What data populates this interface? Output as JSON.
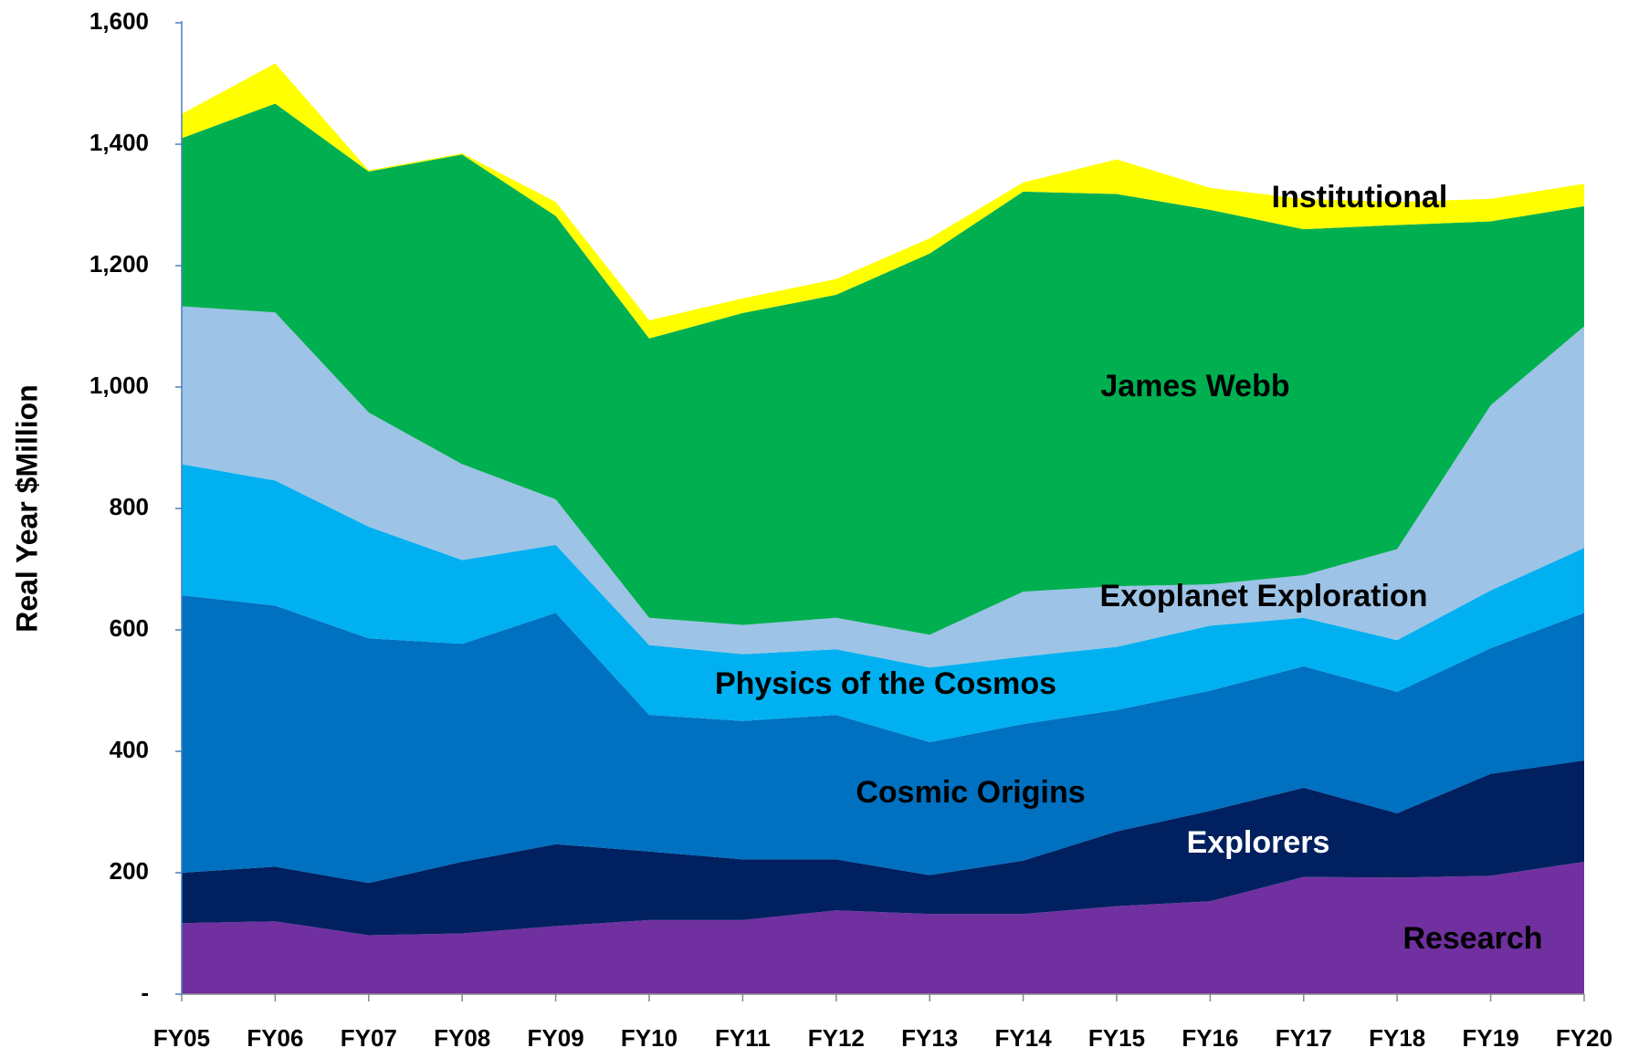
{
  "chart_data": {
    "type": "stacked_area",
    "y_label": "Real Year $Million",
    "categories": [
      "FY05",
      "FY06",
      "FY07",
      "FY08",
      "FY09",
      "FY10",
      "FY11",
      "FY12",
      "FY13",
      "FY14",
      "FY15",
      "FY16",
      "FY17",
      "FY18",
      "FY19",
      "FY20"
    ],
    "series": [
      {
        "name": "Research",
        "color": "#7030a0",
        "values": [
          117,
          120,
          97,
          100,
          112,
          122,
          122,
          138,
          132,
          132,
          145,
          153,
          193,
          192,
          195,
          218
        ]
      },
      {
        "name": "Explorers",
        "color": "#002060",
        "values": [
          83,
          90,
          86,
          118,
          135,
          113,
          100,
          84,
          64,
          88,
          123,
          149,
          147,
          106,
          168,
          167
        ]
      },
      {
        "name": "Cosmic Origins",
        "color": "#0070c0",
        "values": [
          457,
          430,
          403,
          359,
          381,
          225,
          228,
          238,
          219,
          225,
          200,
          198,
          200,
          200,
          207,
          243
        ]
      },
      {
        "name": "Physics of the Cosmos",
        "color": "#00b0f0",
        "values": [
          216,
          206,
          184,
          138,
          112,
          115,
          110,
          108,
          123,
          111,
          104,
          107,
          80,
          85,
          95,
          107
        ]
      },
      {
        "name": "Exoplanet Exploration",
        "color": "#9dc3e6",
        "values": [
          260,
          277,
          188,
          158,
          75,
          45,
          48,
          52,
          54,
          107,
          100,
          68,
          70,
          150,
          305,
          365
        ]
      },
      {
        "name": "James Webb",
        "color": "#00b050",
        "values": [
          277,
          344,
          397,
          510,
          467,
          460,
          514,
          532,
          628,
          659,
          646,
          617,
          570,
          534,
          303,
          198
        ]
      },
      {
        "name": "Institutional",
        "color": "#ffff00",
        "values": [
          40,
          66,
          2,
          2,
          23,
          30,
          24,
          26,
          25,
          15,
          57,
          36,
          50,
          38,
          37,
          37
        ]
      }
    ],
    "ylim": [
      0,
      1600
    ],
    "yticks": [
      {
        "value": 0,
        "label": "-"
      },
      200,
      400,
      600,
      800,
      {
        "value": 1000,
        "label": "1,000"
      },
      {
        "value": 1200,
        "label": "1,200"
      },
      {
        "value": 1400,
        "label": "1,400"
      },
      {
        "value": 1600,
        "label": "1,600"
      }
    ]
  }
}
